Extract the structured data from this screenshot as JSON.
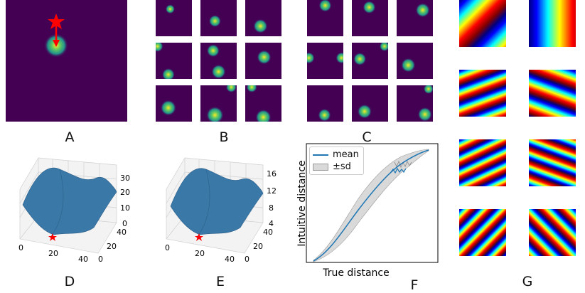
{
  "panels": {
    "A": "A",
    "B": "B",
    "C": "C",
    "D": "D",
    "E": "E",
    "F": "F",
    "G": "G"
  },
  "panel_d": {
    "z_ticks": [
      "30",
      "20",
      "10",
      "0"
    ],
    "x_ticks": [
      "0",
      "20",
      "40"
    ],
    "y_ticks": [
      "40",
      "20",
      "0"
    ]
  },
  "panel_e": {
    "z_ticks": [
      "16",
      "12",
      "8",
      "4"
    ],
    "x_ticks": [
      "0",
      "20",
      "40"
    ],
    "y_ticks": [
      "40",
      "20",
      "0"
    ]
  },
  "chart_data": {
    "type": "line",
    "xlabel": "True distance",
    "ylabel": "Intuitive distance",
    "series": [
      {
        "name": "mean"
      },
      {
        "name": "±sd"
      }
    ]
  },
  "colors": {
    "viridis_bg": "#440154",
    "surface": "#3a78a8",
    "mean_line": "#1f77b4",
    "sd_band": "#d9d9d9",
    "star": "#ff0000"
  }
}
